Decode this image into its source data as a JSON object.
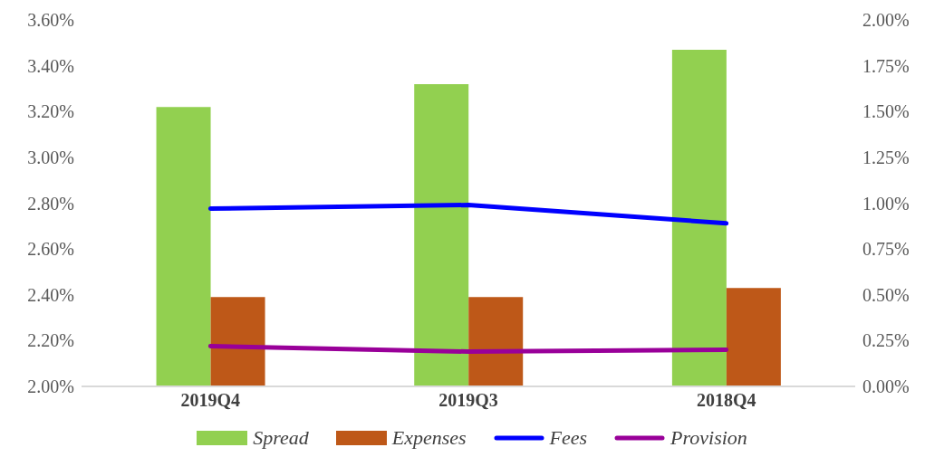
{
  "chart_data": {
    "type": "bar",
    "categories": [
      "2019Q4",
      "2019Q3",
      "2018Q4"
    ],
    "series": [
      {
        "name": "Spread",
        "color": "#92d050",
        "values": [
          3.22,
          3.32,
          3.47
        ]
      },
      {
        "name": "Expenses",
        "color": "#be5818",
        "values": [
          2.39,
          2.39,
          2.43
        ]
      },
      {
        "name": "Fees",
        "type": "line",
        "axis": "y2",
        "color": "#0000ff",
        "values": [
          0.97,
          0.99,
          0.89
        ]
      },
      {
        "name": "Provision",
        "type": "line",
        "axis": "y2",
        "color": "#990099",
        "values": [
          0.22,
          0.19,
          0.2
        ]
      }
    ],
    "ylim": [
      2.0,
      3.6
    ],
    "yticks": [
      {
        "value": 2.0,
        "label": "2.00%"
      },
      {
        "value": 2.2,
        "label": "2.20%"
      },
      {
        "value": 2.4,
        "label": "2.40%"
      },
      {
        "value": 2.6,
        "label": "2.60%"
      },
      {
        "value": 2.8,
        "label": "2.80%"
      },
      {
        "value": 3.0,
        "label": "3.00%"
      },
      {
        "value": 3.2,
        "label": "3.20%"
      },
      {
        "value": 3.4,
        "label": "3.40%"
      },
      {
        "value": 3.6,
        "label": "3.60%"
      }
    ],
    "y2lim": [
      0,
      2.0
    ],
    "y2ticks": [
      {
        "value": 0,
        "label": "0.00%"
      },
      {
        "value": 0.25,
        "label": "0.25%"
      },
      {
        "value": 0.5,
        "label": "0.50%"
      },
      {
        "value": 0.75,
        "label": "0.75%"
      },
      {
        "value": 1.0,
        "label": "1.00%"
      },
      {
        "value": 1.25,
        "label": "1.25%"
      },
      {
        "value": 1.5,
        "label": "1.50%"
      },
      {
        "value": 1.75,
        "label": "1.75%"
      },
      {
        "value": 2.0,
        "label": "2.00%"
      }
    ],
    "grid": false,
    "legend": "bottom",
    "marker": "none",
    "line_style": "solid"
  }
}
